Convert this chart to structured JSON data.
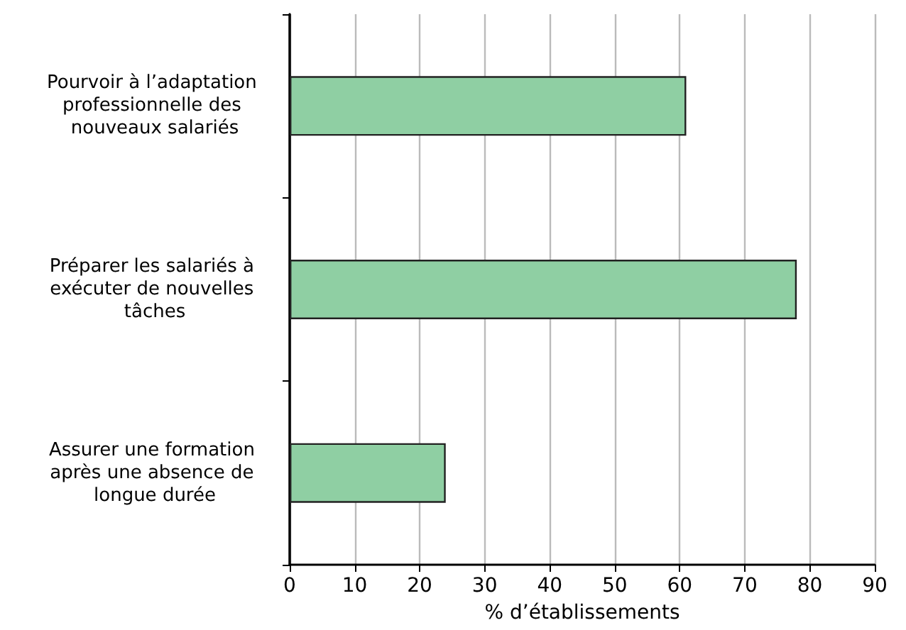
{
  "chart_data": {
    "type": "bar",
    "orientation": "horizontal",
    "xlabel": "% d’établissements",
    "categories": [
      "Pourvoir à l’adaptation professionnelle des nouveaux salariés",
      "Préparer les salariés à exécuter de nouvelles tâches",
      "Assurer une formation après une absence de longue durée"
    ],
    "values": [
      61,
      78,
      24
    ],
    "color": "#8fcfa3",
    "xlim": [
      0,
      90
    ],
    "xticks": [
      0,
      10,
      20,
      30,
      40,
      50,
      60,
      70,
      80,
      90
    ],
    "grid": "x"
  }
}
